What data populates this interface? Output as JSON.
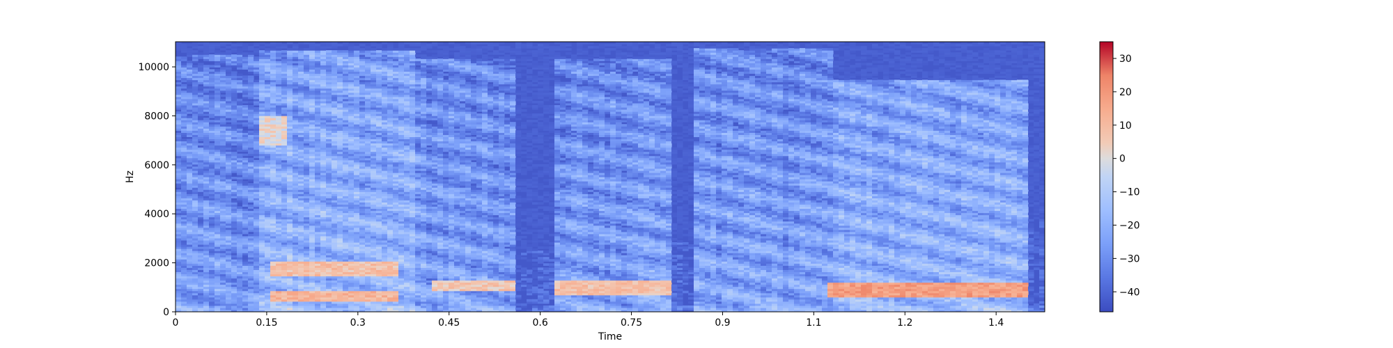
{
  "chart_data": {
    "type": "heatmap",
    "title": "",
    "xlabel": "Time",
    "ylabel": "Hz",
    "xlim": [
      0,
      1.43
    ],
    "ylim": [
      0,
      11025
    ],
    "x_ticks": [
      {
        "value": 0,
        "label": "0"
      },
      {
        "value": 0.15,
        "label": "0.15"
      },
      {
        "value": 0.3,
        "label": "0.3"
      },
      {
        "value": 0.45,
        "label": "0.45"
      },
      {
        "value": 0.6,
        "label": "0.6"
      },
      {
        "value": 0.75,
        "label": "0.75"
      },
      {
        "value": 0.9,
        "label": "0.9"
      },
      {
        "value": 1.05,
        "label": "1.1"
      },
      {
        "value": 1.2,
        "label": "1.2"
      },
      {
        "value": 1.35,
        "label": "1.4"
      }
    ],
    "y_ticks": [
      {
        "value": 0,
        "label": "0"
      },
      {
        "value": 2000,
        "label": "2000"
      },
      {
        "value": 4000,
        "label": "4000"
      },
      {
        "value": 6000,
        "label": "6000"
      },
      {
        "value": 8000,
        "label": "8000"
      },
      {
        "value": 10000,
        "label": "10000"
      }
    ],
    "colorbar": {
      "range": [
        -46,
        35
      ],
      "ticks": [
        {
          "value": 30,
          "label": "30"
        },
        {
          "value": 20,
          "label": "20"
        },
        {
          "value": 10,
          "label": "10"
        },
        {
          "value": 0,
          "label": "0"
        },
        {
          "value": -10,
          "label": "−10"
        },
        {
          "value": -20,
          "label": "−20"
        },
        {
          "value": -30,
          "label": "−30"
        },
        {
          "value": -40,
          "label": "−40"
        }
      ],
      "colormap": "coolwarm"
    },
    "grid": false,
    "regions": [
      {
        "time": [
          0.0,
          0.14
        ],
        "level": "low-mid",
        "upper_hz": 10500
      },
      {
        "time": [
          0.14,
          0.39
        ],
        "level": "mid-high",
        "upper_hz": 10700
      },
      {
        "time": [
          0.39,
          0.56
        ],
        "level": "mid",
        "upper_hz": 10300
      },
      {
        "time": [
          0.56,
          0.62
        ],
        "level": "quiet",
        "upper_hz": 2500
      },
      {
        "time": [
          0.62,
          0.82
        ],
        "level": "mid",
        "upper_hz": 10300
      },
      {
        "time": [
          0.82,
          0.85
        ],
        "level": "quiet",
        "upper_hz": 3000
      },
      {
        "time": [
          0.85,
          1.08
        ],
        "level": "mid",
        "upper_hz": 10800
      },
      {
        "time": [
          1.08,
          1.4
        ],
        "level": "mid-high",
        "upper_hz": 9500
      },
      {
        "time": [
          1.4,
          1.43
        ],
        "level": "quiet",
        "upper_hz": 4000
      }
    ],
    "hot_bands": [
      {
        "time": [
          0.16,
          0.37
        ],
        "hz": [
          1500,
          2100
        ],
        "db": 12
      },
      {
        "time": [
          0.16,
          0.37
        ],
        "hz": [
          400,
          900
        ],
        "db": 15
      },
      {
        "time": [
          0.42,
          0.56
        ],
        "hz": [
          900,
          1300
        ],
        "db": 10
      },
      {
        "time": [
          0.62,
          0.82
        ],
        "hz": [
          700,
          1300
        ],
        "db": 12
      },
      {
        "time": [
          1.07,
          1.4
        ],
        "hz": [
          600,
          1200
        ],
        "db": 22
      },
      {
        "time": [
          0.14,
          0.18
        ],
        "hz": [
          6800,
          8000
        ],
        "db": 5
      }
    ]
  }
}
